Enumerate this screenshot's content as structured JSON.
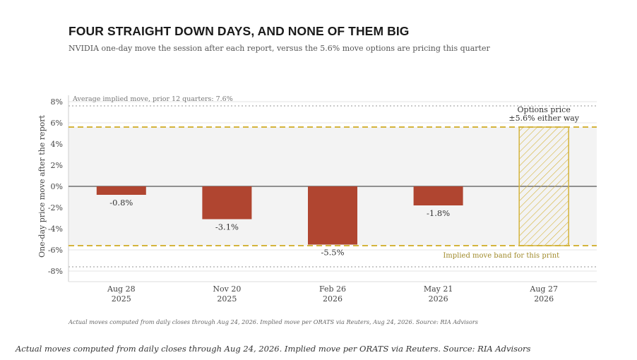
{
  "title": "FOUR STRAIGHT DOWN DAYS, AND NONE OF THEM BIG",
  "subtitle": "NVIDIA one-day move the session after each report, versus the 5.6% move options are pricing this quarter",
  "colors": {
    "bar": "#b04530",
    "implied": "#d4b43c",
    "implied_text": "#a08a2a",
    "band_fill": "#f3f3f3",
    "grid": "#e4e4e4",
    "zero": "#555555",
    "avg_line": "#aaaaaa"
  },
  "chart_data": {
    "type": "bar",
    "ylabel": "One-day price move after the report",
    "ylim": [
      -9,
      8.6
    ],
    "yticks": [
      8,
      6,
      4,
      2,
      0,
      -2,
      -4,
      -6,
      -8
    ],
    "ytick_labels": [
      "8%",
      "6%",
      "4%",
      "2%",
      "0%",
      "-2%",
      "-4%",
      "-6%",
      "-8%"
    ],
    "categories": [
      {
        "line1": "Aug 28",
        "line2": "2025"
      },
      {
        "line1": "Nov 20",
        "line2": "2025"
      },
      {
        "line1": "Feb 26",
        "line2": "2026"
      },
      {
        "line1": "May 21",
        "line2": "2026"
      },
      {
        "line1": "Aug 27",
        "line2": "2026"
      }
    ],
    "values": [
      -0.8,
      -3.1,
      -5.5,
      -1.8,
      null
    ],
    "value_labels": [
      "-0.8%",
      "-3.1%",
      "-5.5%",
      "-1.8%",
      ""
    ],
    "implied_move": 5.6,
    "implied_bar_index": 4,
    "implied_label_line1": "Options price",
    "implied_label_line2": "±5.6% either way",
    "band_label": "Implied move band for this print",
    "average_implied_move": 7.6,
    "average_label": "Average implied move, prior 12 quarters: 7.6%",
    "grid": true
  },
  "footnote": "Actual moves computed from daily closes through Aug 24, 2026. Implied move per ORATS via Reuters, Aug 24, 2026. Source: RIA Advisors",
  "caption": "Actual moves computed from daily closes through Aug 24, 2026. Implied move per ORATS via Reuters. Source: RIA Advisors"
}
